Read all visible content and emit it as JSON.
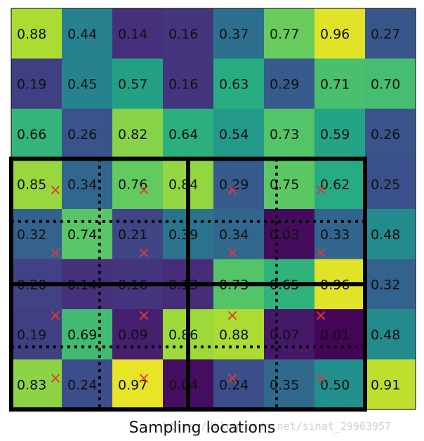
{
  "chart_data": {
    "type": "heatmap",
    "colormap": "viridis",
    "rows": 8,
    "cols": 8,
    "values": [
      [
        0.88,
        0.44,
        0.14,
        0.16,
        0.37,
        0.77,
        0.96,
        0.27
      ],
      [
        0.19,
        0.45,
        0.57,
        0.16,
        0.63,
        0.29,
        0.71,
        0.7
      ],
      [
        0.66,
        0.26,
        0.82,
        0.64,
        0.54,
        0.73,
        0.59,
        0.26
      ],
      [
        0.85,
        0.34,
        0.76,
        0.84,
        0.29,
        0.75,
        0.62,
        0.25
      ],
      [
        0.32,
        0.74,
        0.21,
        0.39,
        0.34,
        0.03,
        0.33,
        0.48
      ],
      [
        0.2,
        0.14,
        0.16,
        0.13,
        0.73,
        0.65,
        0.96,
        0.32
      ],
      [
        0.19,
        0.69,
        0.09,
        0.86,
        0.88,
        0.07,
        0.01,
        0.48
      ],
      [
        0.83,
        0.24,
        0.97,
        0.04,
        0.24,
        0.35,
        0.5,
        0.91
      ]
    ],
    "roi": {
      "x0": 0.0,
      "y0": 3.0,
      "x1": 7.0,
      "y1": 8.0
    },
    "roi_bins": {
      "rows": 2,
      "cols": 2
    },
    "sub_bins": {
      "rows": 2,
      "cols": 2
    },
    "sampling_marker": "×",
    "sampling_color": "#e53935"
  },
  "caption": "Sampling locations",
  "watermark": "https://blog.csdn.net/sinat_29963957"
}
